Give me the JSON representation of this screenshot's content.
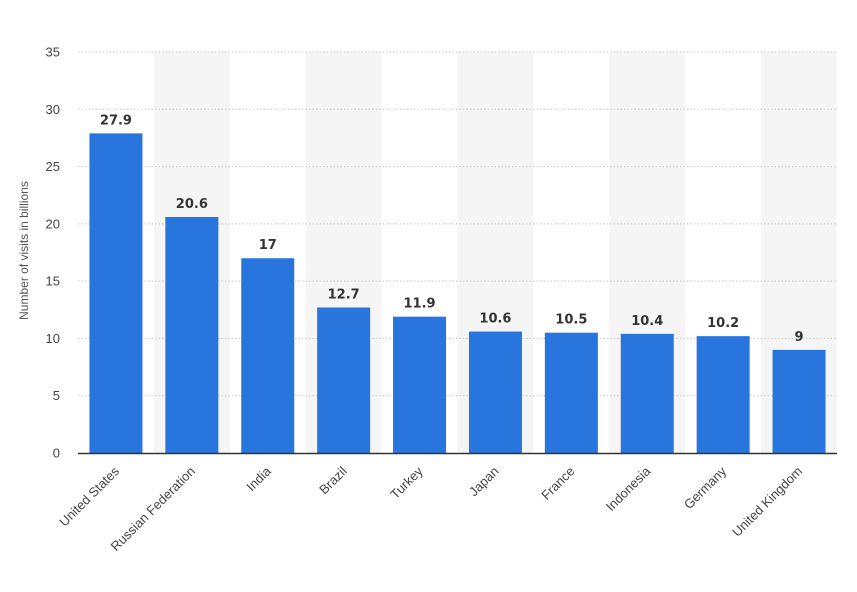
{
  "chart_data": {
    "type": "bar",
    "categories": [
      "United States",
      "Russian Federation",
      "India",
      "Brazil",
      "Turkey",
      "Japan",
      "France",
      "Indonesia",
      "Germany",
      "United Kingdom"
    ],
    "values": [
      27.9,
      20.6,
      17,
      12.7,
      11.9,
      10.6,
      10.5,
      10.4,
      10.2,
      9
    ],
    "value_labels": [
      "27.9",
      "20.6",
      "17",
      "12.7",
      "11.9",
      "10.6",
      "10.5",
      "10.4",
      "10.2",
      "9"
    ],
    "title": "",
    "xlabel": "",
    "ylabel": "Number of visits in billions",
    "ylim": [
      0,
      35
    ],
    "yticks": [
      0,
      5,
      10,
      15,
      20,
      25,
      30,
      35
    ],
    "grid": "horizontal dotted",
    "alternating_band_background": true,
    "colors": {
      "bar": "#2876dd",
      "band": "#f5f5f5",
      "grid": "#c8c8c8",
      "axis": "#333333"
    }
  }
}
